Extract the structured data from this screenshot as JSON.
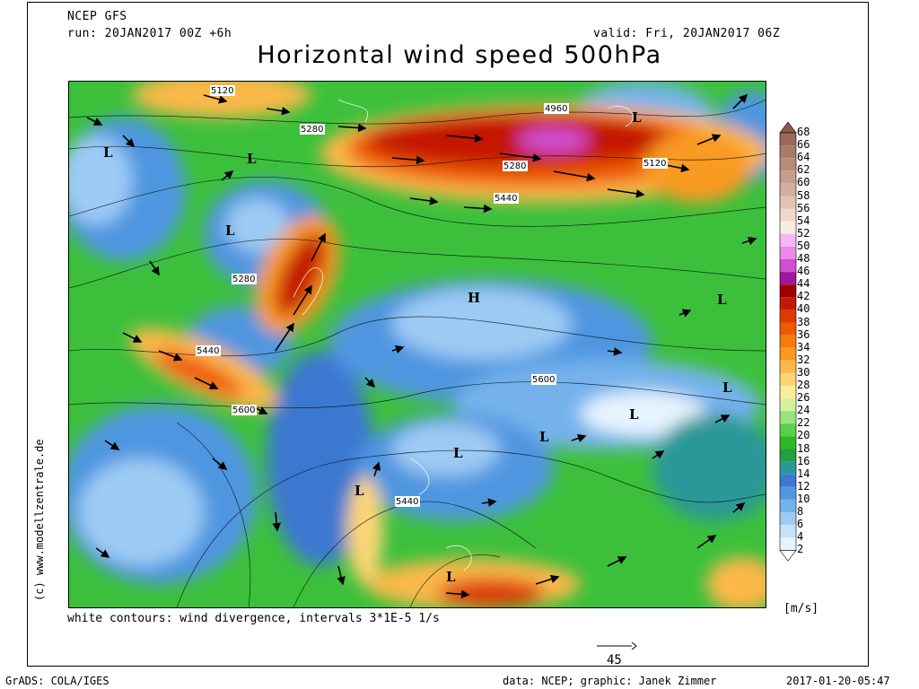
{
  "header": {
    "model": "NCEP GFS",
    "run": "run: 20JAN2017 00Z +6h",
    "valid": "valid: Fri, 20JAN2017 06Z",
    "title": "Horizontal wind speed 500hPa"
  },
  "side_credit": "(c) www.modellzentrale.de",
  "note": "white contours: wind divergence, intervals 3*1E-5 1/s",
  "scale_vector": "45",
  "unit": "[m/s]",
  "footer": {
    "left": "GrADS: COLA/IGES",
    "middle": "data: NCEP; graphic: Janek Zimmer",
    "right": "2017-01-20-05:47"
  },
  "colorbar": {
    "labels": [
      "68",
      "66",
      "64",
      "62",
      "60",
      "58",
      "56",
      "54",
      "52",
      "50",
      "48",
      "46",
      "44",
      "42",
      "40",
      "38",
      "36",
      "34",
      "32",
      "30",
      "28",
      "26",
      "24",
      "22",
      "20",
      "18",
      "16",
      "14",
      "12",
      "10",
      "8",
      "6",
      "4",
      "2"
    ],
    "colors": [
      "#8b5a4a",
      "#9a6a5a",
      "#a87a6a",
      "#b88a7a",
      "#c69c8c",
      "#d4ae9e",
      "#e2c2b4",
      "#efd8cc",
      "#f8ece6",
      "#f5b8f5",
      "#e88be8",
      "#d04fd0",
      "#a0169e",
      "#a00000",
      "#c41800",
      "#dc3a00",
      "#ee5a00",
      "#f57a10",
      "#f99a20",
      "#fcb84a",
      "#fdd574",
      "#fcee9c",
      "#d6f0a0",
      "#9ae27c",
      "#58d04a",
      "#2cb828",
      "#22a040",
      "#2a9898",
      "#3c78d0",
      "#5096e0",
      "#74b2ec",
      "#9ccaf4",
      "#c4e2fa",
      "#e6f4fe"
    ]
  },
  "map_labels": {
    "contours": [
      "5120",
      "5280",
      "4960",
      "5120",
      "5280",
      "5440",
      "5280",
      "5440",
      "5600",
      "5600",
      "5440"
    ],
    "pressure_centers": [
      "L",
      "L",
      "L",
      "L",
      "L",
      "L",
      "L",
      "L",
      "L",
      "L",
      "L",
      "H"
    ]
  },
  "colors": {
    "jet_core": "#c41800",
    "background_green": "#3cc03c",
    "calm_blue": "#5096e0"
  }
}
